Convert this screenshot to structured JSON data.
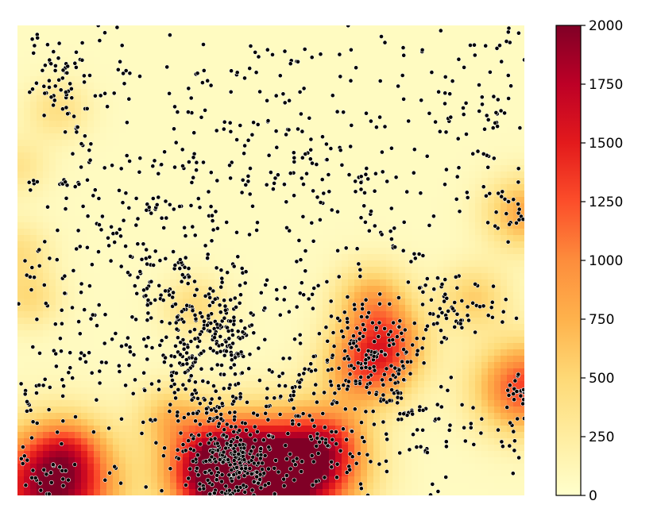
{
  "chart_data": {
    "type": "heatmap",
    "title": "",
    "xlabel": "",
    "ylabel": "",
    "axes_visible": false,
    "grid": false,
    "colormap": "YlOrRd",
    "colormap_stops": [
      "#ffffcc",
      "#ffeda0",
      "#fed976",
      "#feb24c",
      "#fd8d3c",
      "#fc4e2a",
      "#e31a1c",
      "#bd0026",
      "#800026"
    ],
    "point_color": "#000000",
    "point_outline_color": "#ffffff",
    "colorbar": {
      "position": "right",
      "vmin": 0,
      "vmax": 2000,
      "ticks": [
        0,
        250,
        500,
        750,
        1000,
        1250,
        1500,
        1750,
        2000
      ]
    },
    "x_range": [
      0,
      1
    ],
    "y_range": [
      0,
      1
    ],
    "hotspots": [
      {
        "x": 0.07,
        "y": 0.02,
        "value": 1950
      },
      {
        "x": 0.45,
        "y": 0.03,
        "value": 1850
      },
      {
        "x": 0.57,
        "y": 0.06,
        "value": 1700
      },
      {
        "x": 0.39,
        "y": 0.06,
        "value": 1300
      },
      {
        "x": 1.0,
        "y": 0.23,
        "value": 1250
      },
      {
        "x": 0.69,
        "y": 0.27,
        "value": 1000
      },
      {
        "x": 0.73,
        "y": 0.33,
        "value": 800
      },
      {
        "x": 0.7,
        "y": 0.42,
        "value": 650
      },
      {
        "x": 1.0,
        "y": 0.6,
        "value": 750
      },
      {
        "x": 0.9,
        "y": 0.42,
        "value": 500
      },
      {
        "x": 0.35,
        "y": 0.4,
        "value": 400
      },
      {
        "x": 0.02,
        "y": 0.42,
        "value": 400
      },
      {
        "x": 0.0,
        "y": 0.52,
        "value": 350
      },
      {
        "x": 0.08,
        "y": 0.82,
        "value": 350
      },
      {
        "x": 0.0,
        "y": 0.7,
        "value": 300
      },
      {
        "x": 0.62,
        "y": 0.12,
        "value": 450
      },
      {
        "x": 0.3,
        "y": 0.17,
        "value": 500
      },
      {
        "x": 0.1,
        "y": 0.1,
        "value": 450
      }
    ],
    "point_clusters": [
      {
        "x": 0.43,
        "y": 0.06,
        "spread": 0.045,
        "count": 190
      },
      {
        "x": 0.39,
        "y": 0.12,
        "spread": 0.05,
        "count": 70
      },
      {
        "x": 0.06,
        "y": 0.04,
        "spread": 0.03,
        "count": 22
      },
      {
        "x": 0.7,
        "y": 0.3,
        "spread": 0.055,
        "count": 100
      },
      {
        "x": 0.72,
        "y": 0.23,
        "spread": 0.035,
        "count": 40
      },
      {
        "x": 0.35,
        "y": 0.27,
        "spread": 0.045,
        "count": 70
      },
      {
        "x": 0.3,
        "y": 0.4,
        "spread": 0.06,
        "count": 75
      },
      {
        "x": 0.4,
        "y": 0.35,
        "spread": 0.04,
        "count": 45
      },
      {
        "x": 0.85,
        "y": 0.4,
        "spread": 0.05,
        "count": 45
      },
      {
        "x": 0.99,
        "y": 0.22,
        "spread": 0.02,
        "count": 20
      },
      {
        "x": 0.97,
        "y": 0.14,
        "spread": 0.04,
        "count": 20
      },
      {
        "x": 0.99,
        "y": 0.61,
        "spread": 0.025,
        "count": 22
      },
      {
        "x": 0.93,
        "y": 0.68,
        "spread": 0.04,
        "count": 15
      },
      {
        "x": 0.06,
        "y": 0.88,
        "spread": 0.035,
        "count": 35
      },
      {
        "x": 0.48,
        "y": 0.67,
        "spread": 0.07,
        "count": 50
      },
      {
        "x": 0.25,
        "y": 0.63,
        "spread": 0.07,
        "count": 45
      },
      {
        "x": 0.63,
        "y": 0.65,
        "spread": 0.08,
        "count": 40
      },
      {
        "x": 0.15,
        "y": 0.3,
        "spread": 0.06,
        "count": 35
      },
      {
        "x": 0.07,
        "y": 0.48,
        "spread": 0.05,
        "count": 25
      },
      {
        "x": 0.53,
        "y": 0.2,
        "spread": 0.06,
        "count": 35
      },
      {
        "x": 0.78,
        "y": 0.82,
        "spread": 0.08,
        "count": 30
      },
      {
        "x": 0.5,
        "y": 0.9,
        "spread": 0.09,
        "count": 40
      },
      {
        "x": 0.2,
        "y": 0.88,
        "spread": 0.08,
        "count": 25
      },
      {
        "x": 0.9,
        "y": 0.9,
        "spread": 0.06,
        "count": 25
      },
      {
        "x": 0.58,
        "y": 0.4,
        "spread": 0.05,
        "count": 30
      },
      {
        "x": 0.82,
        "y": 0.12,
        "spread": 0.05,
        "count": 25
      },
      {
        "x": 0.03,
        "y": 0.2,
        "spread": 0.03,
        "count": 15
      },
      {
        "x": 0.62,
        "y": 0.08,
        "spread": 0.04,
        "count": 35
      }
    ],
    "point_lines": [
      {
        "from": [
          0.44,
          0.0
        ],
        "to": [
          0.43,
          0.55
        ],
        "count": 55,
        "jitter": 0.012
      },
      {
        "from": [
          0.24,
          0.48
        ],
        "to": [
          0.44,
          0.28
        ],
        "count": 30,
        "jitter": 0.01
      },
      {
        "from": [
          0.33,
          0.55
        ],
        "to": [
          0.33,
          0.22
        ],
        "count": 30,
        "jitter": 0.012
      },
      {
        "from": [
          0.42,
          0.28
        ],
        "to": [
          0.37,
          0.62
        ],
        "count": 25,
        "jitter": 0.01
      },
      {
        "from": [
          0.6,
          0.12
        ],
        "to": [
          0.67,
          0.4
        ],
        "count": 25,
        "jitter": 0.012
      },
      {
        "from": [
          0.25,
          0.15
        ],
        "to": [
          0.44,
          0.2
        ],
        "count": 20,
        "jitter": 0.008
      },
      {
        "from": [
          0.74,
          0.17
        ],
        "to": [
          0.83,
          0.19
        ],
        "count": 12,
        "jitter": 0.006
      },
      {
        "from": [
          0.83,
          0.38
        ],
        "to": [
          0.92,
          0.41
        ],
        "count": 14,
        "jitter": 0.008
      },
      {
        "from": [
          0.0,
          0.66
        ],
        "to": [
          0.12,
          0.66
        ],
        "count": 12,
        "jitter": 0.006
      },
      {
        "from": [
          0.72,
          0.55
        ],
        "to": [
          0.85,
          0.45
        ],
        "count": 14,
        "jitter": 0.01
      },
      {
        "from": [
          0.08,
          0.94
        ],
        "to": [
          0.14,
          0.7
        ],
        "count": 20,
        "jitter": 0.01
      },
      {
        "from": [
          0.24,
          0.5
        ],
        "to": [
          0.14,
          0.6
        ],
        "count": 14,
        "jitter": 0.01
      },
      {
        "from": [
          0.92,
          0.78
        ],
        "to": [
          0.99,
          0.85
        ],
        "count": 10,
        "jitter": 0.008
      },
      {
        "from": [
          0.52,
          0.2
        ],
        "to": [
          0.6,
          0.3
        ],
        "count": 14,
        "jitter": 0.01
      },
      {
        "from": [
          0.68,
          0.7
        ],
        "to": [
          0.7,
          0.55
        ],
        "count": 12,
        "jitter": 0.01
      }
    ],
    "scattered_point_count": 320
  }
}
